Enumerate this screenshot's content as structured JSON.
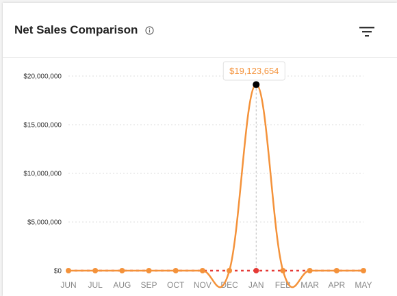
{
  "header": {
    "title": "Net Sales Comparison",
    "info_icon": "info-icon",
    "filter_icon": "filter-icon"
  },
  "colors": {
    "series_current": "#f4923a",
    "series_previous": "#e53935",
    "highlight_point": "#000000"
  },
  "chart_data": {
    "type": "line",
    "categories": [
      "JUN",
      "JUL",
      "AUG",
      "SEP",
      "OCT",
      "NOV",
      "DEC",
      "JAN",
      "FEB",
      "MAR",
      "APR",
      "MAY"
    ],
    "series": [
      {
        "values": [
          0,
          0,
          0,
          0,
          0,
          0,
          0,
          19123654,
          0,
          0,
          0,
          0
        ]
      },
      {
        "values": [
          0,
          0,
          0,
          0,
          0,
          0,
          0,
          0,
          0,
          0,
          0,
          0
        ]
      }
    ],
    "yticks": [
      "$0",
      "$5,000,000",
      "$10,000,000",
      "$15,000,000",
      "$20,000,000"
    ],
    "ylim": [
      0,
      20000000
    ],
    "grid": true,
    "tooltip": {
      "category": "JAN",
      "label": "$19,123,654"
    }
  }
}
